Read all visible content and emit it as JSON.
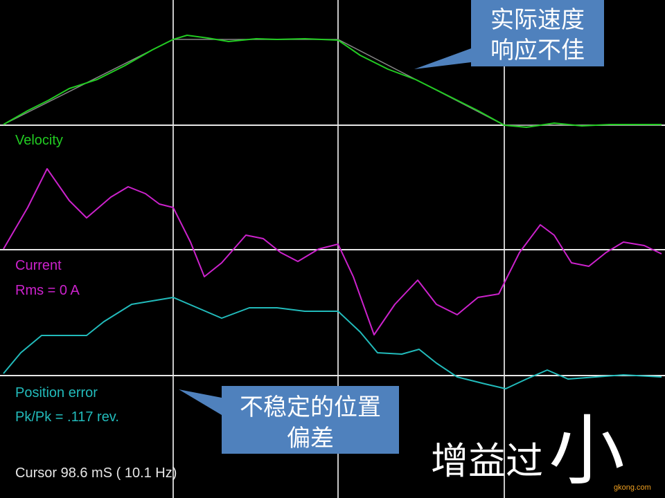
{
  "traces": {
    "velocity": "Velocity",
    "current": "Current",
    "rms": "Rms =  0 A",
    "position_error": "Position error",
    "pkpk": "Pk/Pk =  .117 rev.",
    "cursor": "Cursor  98.6 mS ( 10.1 Hz)"
  },
  "callouts": {
    "velocity": [
      "实际速度",
      "响应不佳"
    ],
    "position": [
      "不稳定的位置",
      "偏差"
    ]
  },
  "caption": {
    "main": "增益过",
    "big": "小"
  },
  "watermark": "gkong.com"
}
